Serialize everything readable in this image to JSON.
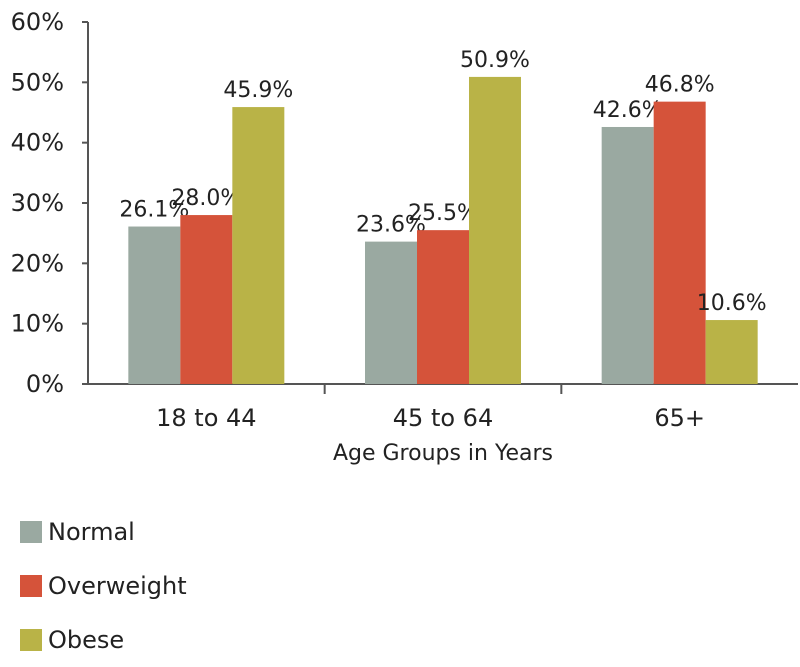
{
  "chart_data": {
    "type": "bar",
    "title": "",
    "xlabel": "Age Groups in Years",
    "ylabel": "",
    "ylim": [
      0,
      60
    ],
    "yticks": [
      "0%",
      "10%",
      "20%",
      "30%",
      "40%",
      "50%",
      "60%"
    ],
    "categories": [
      "18 to 44",
      "45 to 64",
      "65+"
    ],
    "series": [
      {
        "name": "Normal",
        "color": "#9aa9a1",
        "values": [
          26.1,
          23.6,
          42.6
        ],
        "labels": [
          "26.1%",
          "23.6%",
          "42.6%"
        ]
      },
      {
        "name": "Overweight",
        "color": "#d5533a",
        "values": [
          28.0,
          25.5,
          46.8
        ],
        "labels": [
          "28.0%",
          "25.5%",
          "46.8%"
        ]
      },
      {
        "name": "Obese",
        "color": "#b9b347",
        "values": [
          45.9,
          50.9,
          10.6
        ],
        "labels": [
          "45.9%",
          "50.9%",
          "10.6%"
        ]
      }
    ],
    "grid": false,
    "legend_position": "bottom-left"
  }
}
